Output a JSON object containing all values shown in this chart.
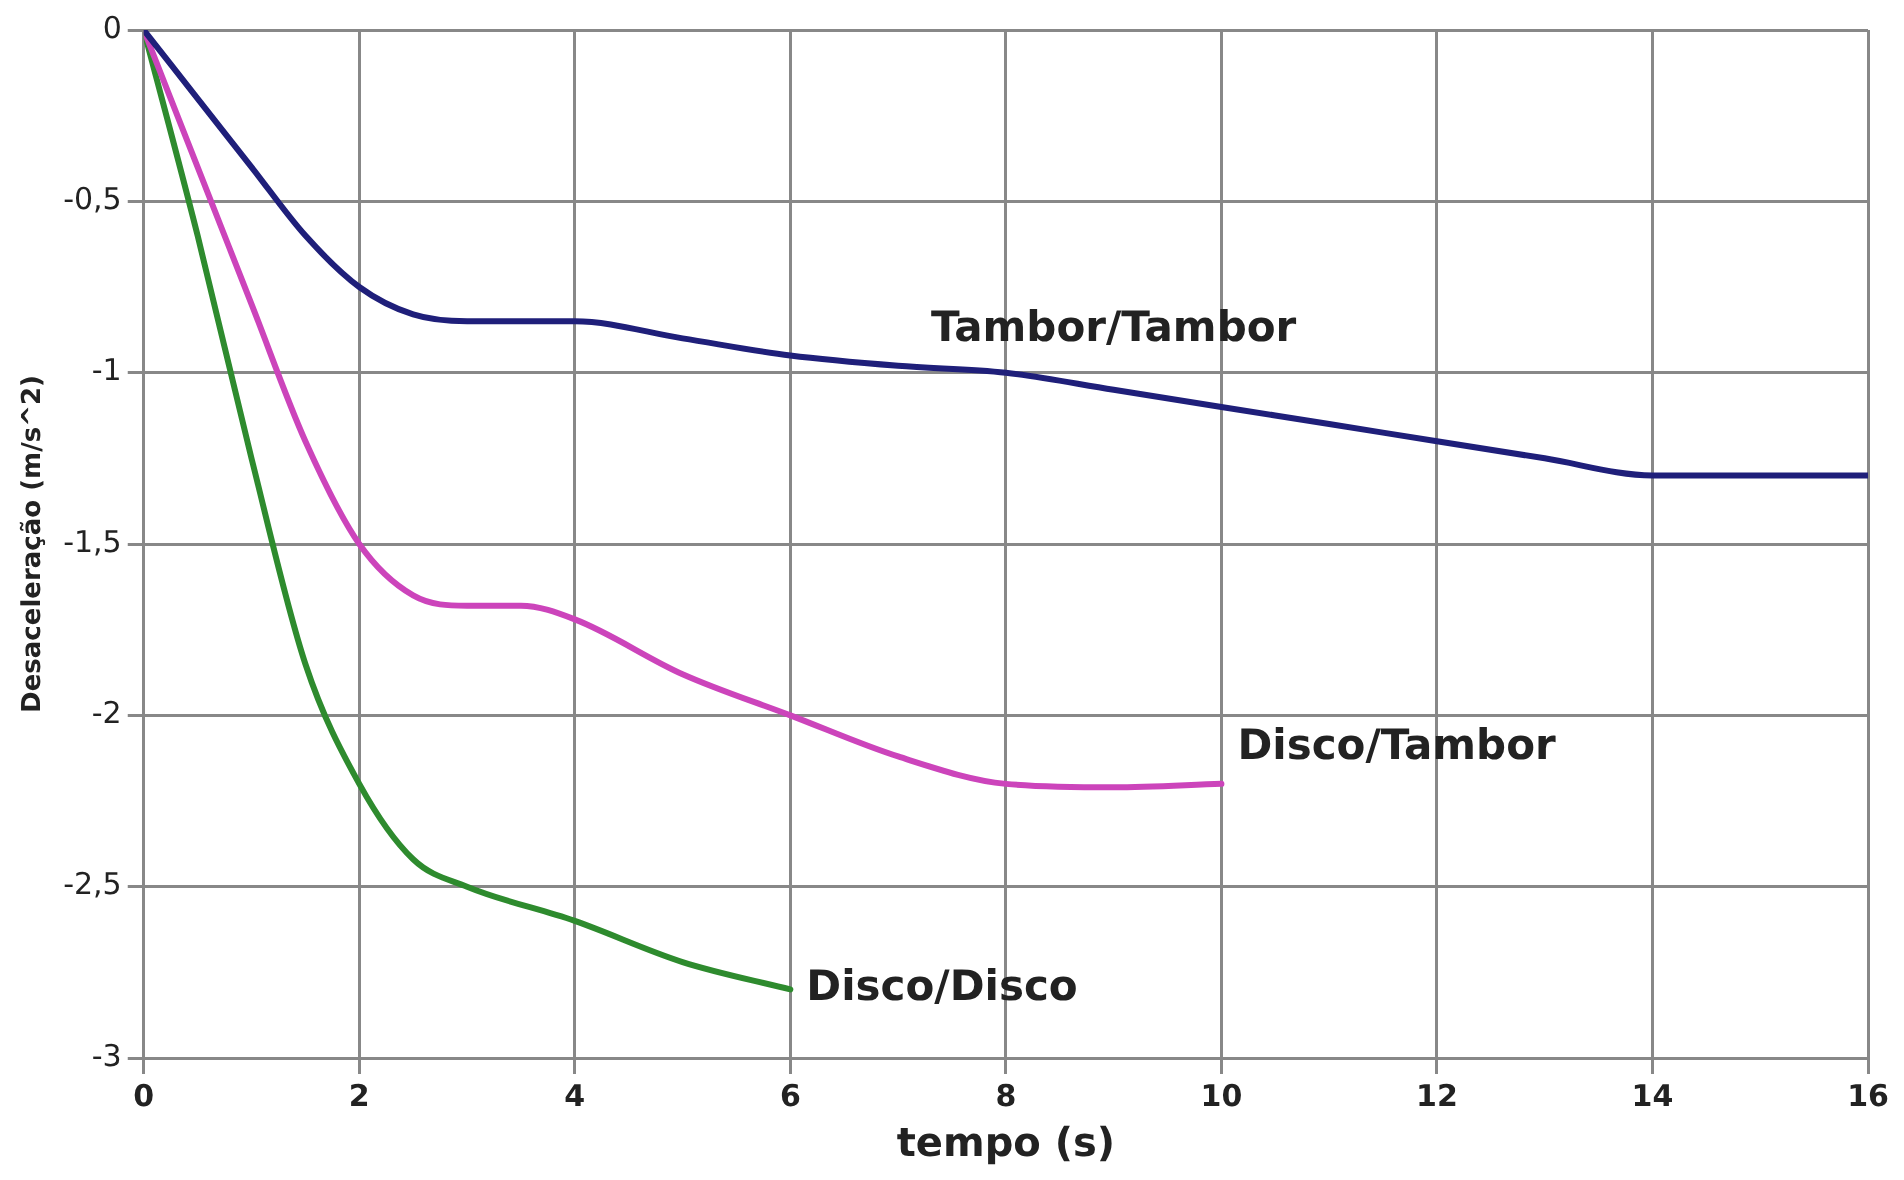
{
  "chart_data": {
    "type": "line",
    "xlabel": "tempo (s)",
    "ylabel": "Desaceleração (m/s^2)",
    "xlim": [
      0,
      16
    ],
    "xticks": [
      0,
      2,
      4,
      6,
      8,
      10,
      12,
      14,
      16
    ],
    "ylim": [
      -3,
      0
    ],
    "yticks": [
      {
        "value": -3,
        "label": "-3"
      },
      {
        "value": -2.5,
        "label": "-2,5"
      },
      {
        "value": -2,
        "label": "-2"
      },
      {
        "value": -1.5,
        "label": "-1,5"
      },
      {
        "value": -1,
        "label": "-1"
      },
      {
        "value": -0.5,
        "label": "-0,5"
      },
      {
        "value": 0,
        "label": "0"
      }
    ],
    "grid": true,
    "legend": false,
    "marker": "none",
    "line_style": "solid",
    "series": [
      {
        "name": "Tambor/Tambor",
        "color": "#1f1f7a",
        "x": [
          0,
          0.5,
          1,
          1.5,
          2,
          2.5,
          3,
          4,
          5,
          6,
          7,
          8,
          9,
          10,
          11,
          12,
          13,
          14,
          15,
          16
        ],
        "values": [
          0,
          -0.2,
          -0.4,
          -0.6,
          -0.75,
          -0.83,
          -0.85,
          -0.85,
          -0.9,
          -0.95,
          -0.98,
          -1.0,
          -1.05,
          -1.1,
          -1.15,
          -1.2,
          -1.25,
          -1.3,
          -1.3,
          -1.3
        ]
      },
      {
        "name": "Disco/Tambor",
        "color": "#cc44bb",
        "x": [
          0,
          0.5,
          1,
          1.5,
          2,
          2.5,
          3,
          3.5,
          4,
          5,
          6,
          7,
          8,
          9,
          10
        ],
        "values": [
          0,
          -0.4,
          -0.8,
          -1.2,
          -1.5,
          -1.65,
          -1.68,
          -1.68,
          -1.72,
          -1.88,
          -2.0,
          -2.12,
          -2.2,
          -2.21,
          -2.2
        ]
      },
      {
        "name": "Disco/Disco",
        "color": "#2e8b2e",
        "x": [
          0,
          0.5,
          1,
          1.5,
          2,
          2.5,
          3,
          4,
          5,
          6
        ],
        "values": [
          0,
          -0.6,
          -1.25,
          -1.85,
          -2.2,
          -2.42,
          -2.5,
          -2.6,
          -2.72,
          -2.8
        ]
      }
    ]
  }
}
